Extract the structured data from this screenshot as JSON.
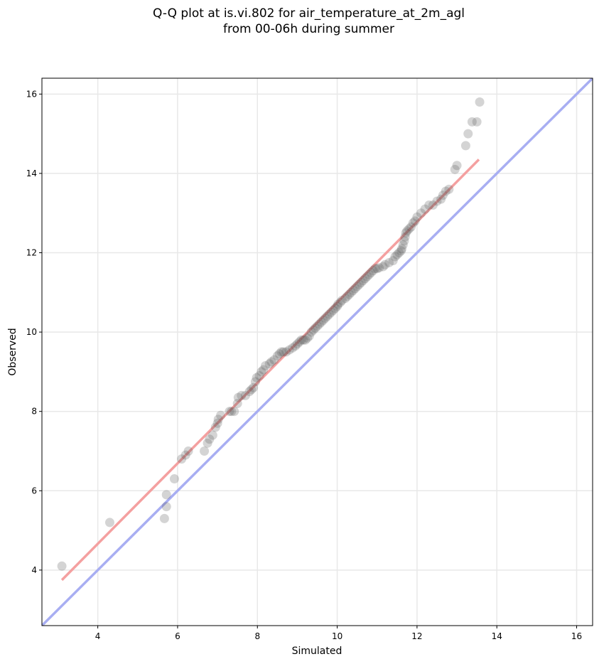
{
  "chart_data": {
    "type": "scatter",
    "title_line1": "Q-Q plot at is.vi.802 for air_temperature_at_2m_agl",
    "title_line2": "from 00-06h during summer",
    "xlabel": "Simulated",
    "ylabel": "Observed",
    "xlim": [
      2.6,
      16.4
    ],
    "ylim": [
      2.6,
      16.4
    ],
    "xticks": [
      4,
      6,
      8,
      10,
      12,
      14,
      16
    ],
    "yticks": [
      4,
      6,
      8,
      10,
      12,
      14,
      16
    ],
    "grid": true,
    "colors": {
      "points": "#555555",
      "fit_line": "#f4a0a0",
      "identity_line": "#a8aef2",
      "grid": "#e8e8e8"
    },
    "identity_line": {
      "x": [
        2.6,
        16.4
      ],
      "y": [
        2.6,
        16.4
      ]
    },
    "fit_line": {
      "x": [
        3.1,
        13.55
      ],
      "y": [
        3.75,
        14.35
      ]
    },
    "points": [
      [
        3.1,
        4.1
      ],
      [
        4.3,
        5.2
      ],
      [
        5.67,
        5.3
      ],
      [
        5.72,
        5.6
      ],
      [
        5.72,
        5.9
      ],
      [
        5.92,
        6.3
      ],
      [
        6.1,
        6.8
      ],
      [
        6.2,
        6.9
      ],
      [
        6.27,
        7.0
      ],
      [
        6.67,
        7.0
      ],
      [
        6.75,
        7.2
      ],
      [
        6.8,
        7.3
      ],
      [
        6.88,
        7.4
      ],
      [
        6.95,
        7.6
      ],
      [
        7.0,
        7.7
      ],
      [
        7.02,
        7.8
      ],
      [
        7.08,
        7.9
      ],
      [
        7.3,
        8.0
      ],
      [
        7.35,
        8.0
      ],
      [
        7.42,
        8.0
      ],
      [
        7.5,
        8.2
      ],
      [
        7.52,
        8.35
      ],
      [
        7.6,
        8.4
      ],
      [
        7.7,
        8.4
      ],
      [
        7.8,
        8.5
      ],
      [
        7.85,
        8.55
      ],
      [
        7.9,
        8.6
      ],
      [
        7.95,
        8.75
      ],
      [
        7.98,
        8.85
      ],
      [
        8.05,
        8.9
      ],
      [
        8.1,
        9.0
      ],
      [
        8.15,
        9.05
      ],
      [
        8.2,
        9.15
      ],
      [
        8.3,
        9.2
      ],
      [
        8.35,
        9.25
      ],
      [
        8.42,
        9.3
      ],
      [
        8.5,
        9.4
      ],
      [
        8.55,
        9.45
      ],
      [
        8.6,
        9.5
      ],
      [
        8.65,
        9.5
      ],
      [
        8.72,
        9.5
      ],
      [
        8.8,
        9.55
      ],
      [
        8.88,
        9.6
      ],
      [
        8.95,
        9.65
      ],
      [
        9.0,
        9.7
      ],
      [
        9.05,
        9.75
      ],
      [
        9.1,
        9.8
      ],
      [
        9.15,
        9.8
      ],
      [
        9.2,
        9.8
      ],
      [
        9.25,
        9.85
      ],
      [
        9.3,
        9.9
      ],
      [
        9.35,
        10.0
      ],
      [
        9.4,
        10.05
      ],
      [
        9.45,
        10.1
      ],
      [
        9.5,
        10.15
      ],
      [
        9.55,
        10.2
      ],
      [
        9.6,
        10.25
      ],
      [
        9.65,
        10.3
      ],
      [
        9.7,
        10.35
      ],
      [
        9.75,
        10.4
      ],
      [
        9.8,
        10.45
      ],
      [
        9.85,
        10.5
      ],
      [
        9.9,
        10.55
      ],
      [
        9.95,
        10.6
      ],
      [
        10.0,
        10.65
      ],
      [
        10.02,
        10.7
      ],
      [
        10.08,
        10.75
      ],
      [
        10.12,
        10.8
      ],
      [
        10.2,
        10.85
      ],
      [
        10.25,
        10.9
      ],
      [
        10.3,
        10.95
      ],
      [
        10.35,
        11.0
      ],
      [
        10.4,
        11.05
      ],
      [
        10.45,
        11.1
      ],
      [
        10.5,
        11.15
      ],
      [
        10.55,
        11.2
      ],
      [
        10.6,
        11.25
      ],
      [
        10.65,
        11.3
      ],
      [
        10.7,
        11.35
      ],
      [
        10.75,
        11.4
      ],
      [
        10.8,
        11.45
      ],
      [
        10.85,
        11.5
      ],
      [
        10.9,
        11.55
      ],
      [
        10.95,
        11.6
      ],
      [
        11.0,
        11.6
      ],
      [
        11.05,
        11.62
      ],
      [
        11.15,
        11.65
      ],
      [
        11.2,
        11.7
      ],
      [
        11.3,
        11.75
      ],
      [
        11.4,
        11.8
      ],
      [
        11.45,
        11.9
      ],
      [
        11.5,
        11.95
      ],
      [
        11.55,
        12.0
      ],
      [
        11.6,
        12.05
      ],
      [
        11.62,
        12.1
      ],
      [
        11.65,
        12.2
      ],
      [
        11.68,
        12.3
      ],
      [
        11.7,
        12.4
      ],
      [
        11.72,
        12.5
      ],
      [
        11.75,
        12.55
      ],
      [
        11.8,
        12.6
      ],
      [
        11.85,
        12.65
      ],
      [
        11.9,
        12.75
      ],
      [
        11.95,
        12.8
      ],
      [
        12.0,
        12.9
      ],
      [
        12.1,
        13.0
      ],
      [
        12.2,
        13.1
      ],
      [
        12.3,
        13.2
      ],
      [
        12.4,
        13.2
      ],
      [
        12.5,
        13.3
      ],
      [
        12.6,
        13.35
      ],
      [
        12.65,
        13.45
      ],
      [
        12.72,
        13.55
      ],
      [
        12.8,
        13.6
      ],
      [
        12.95,
        14.1
      ],
      [
        13.0,
        14.2
      ],
      [
        13.22,
        14.7
      ],
      [
        13.28,
        15.0
      ],
      [
        13.38,
        15.3
      ],
      [
        13.5,
        15.3
      ],
      [
        13.57,
        15.8
      ]
    ]
  }
}
